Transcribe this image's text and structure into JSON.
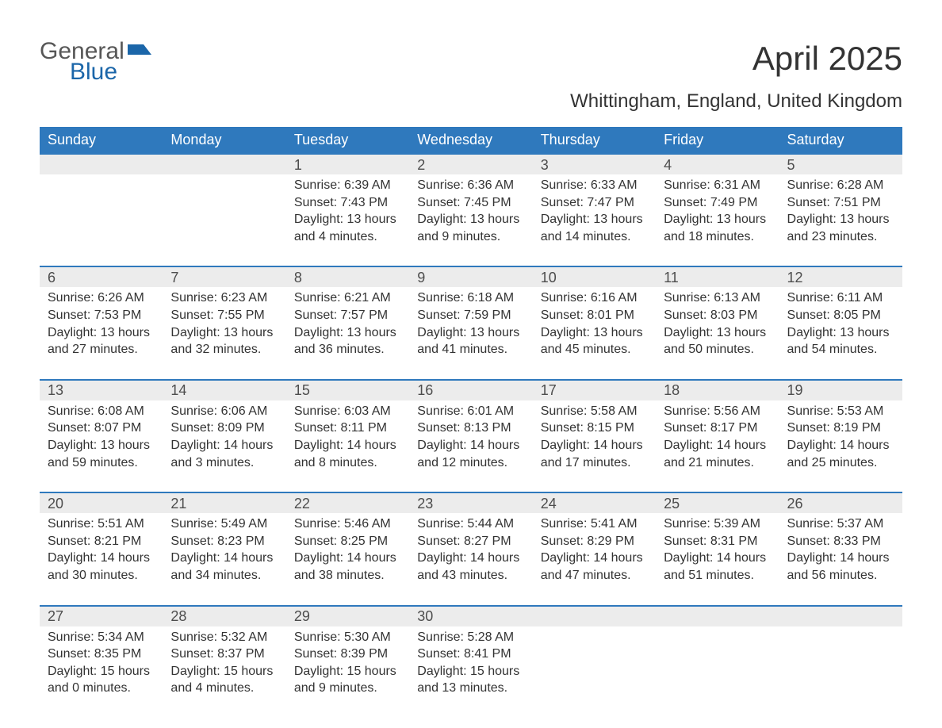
{
  "brand": {
    "word1": "General",
    "word2": "Blue",
    "icon_color": "#1b66a9"
  },
  "title": "April 2025",
  "location": "Whittingham, England, United Kingdom",
  "colors": {
    "header_bg": "#2f79bd",
    "header_text": "#ffffff",
    "daynum_bg": "#ececec",
    "row_border": "#2f79bd",
    "body_bg": "#ffffff",
    "text": "#333333"
  },
  "weekdays": [
    "Sunday",
    "Monday",
    "Tuesday",
    "Wednesday",
    "Thursday",
    "Friday",
    "Saturday"
  ],
  "weeks": [
    [
      null,
      null,
      {
        "n": "1",
        "sr": "6:39 AM",
        "ss": "7:43 PM",
        "dl": "13 hours and 4 minutes."
      },
      {
        "n": "2",
        "sr": "6:36 AM",
        "ss": "7:45 PM",
        "dl": "13 hours and 9 minutes."
      },
      {
        "n": "3",
        "sr": "6:33 AM",
        "ss": "7:47 PM",
        "dl": "13 hours and 14 minutes."
      },
      {
        "n": "4",
        "sr": "6:31 AM",
        "ss": "7:49 PM",
        "dl": "13 hours and 18 minutes."
      },
      {
        "n": "5",
        "sr": "6:28 AM",
        "ss": "7:51 PM",
        "dl": "13 hours and 23 minutes."
      }
    ],
    [
      {
        "n": "6",
        "sr": "6:26 AM",
        "ss": "7:53 PM",
        "dl": "13 hours and 27 minutes."
      },
      {
        "n": "7",
        "sr": "6:23 AM",
        "ss": "7:55 PM",
        "dl": "13 hours and 32 minutes."
      },
      {
        "n": "8",
        "sr": "6:21 AM",
        "ss": "7:57 PM",
        "dl": "13 hours and 36 minutes."
      },
      {
        "n": "9",
        "sr": "6:18 AM",
        "ss": "7:59 PM",
        "dl": "13 hours and 41 minutes."
      },
      {
        "n": "10",
        "sr": "6:16 AM",
        "ss": "8:01 PM",
        "dl": "13 hours and 45 minutes."
      },
      {
        "n": "11",
        "sr": "6:13 AM",
        "ss": "8:03 PM",
        "dl": "13 hours and 50 minutes."
      },
      {
        "n": "12",
        "sr": "6:11 AM",
        "ss": "8:05 PM",
        "dl": "13 hours and 54 minutes."
      }
    ],
    [
      {
        "n": "13",
        "sr": "6:08 AM",
        "ss": "8:07 PM",
        "dl": "13 hours and 59 minutes."
      },
      {
        "n": "14",
        "sr": "6:06 AM",
        "ss": "8:09 PM",
        "dl": "14 hours and 3 minutes."
      },
      {
        "n": "15",
        "sr": "6:03 AM",
        "ss": "8:11 PM",
        "dl": "14 hours and 8 minutes."
      },
      {
        "n": "16",
        "sr": "6:01 AM",
        "ss": "8:13 PM",
        "dl": "14 hours and 12 minutes."
      },
      {
        "n": "17",
        "sr": "5:58 AM",
        "ss": "8:15 PM",
        "dl": "14 hours and 17 minutes."
      },
      {
        "n": "18",
        "sr": "5:56 AM",
        "ss": "8:17 PM",
        "dl": "14 hours and 21 minutes."
      },
      {
        "n": "19",
        "sr": "5:53 AM",
        "ss": "8:19 PM",
        "dl": "14 hours and 25 minutes."
      }
    ],
    [
      {
        "n": "20",
        "sr": "5:51 AM",
        "ss": "8:21 PM",
        "dl": "14 hours and 30 minutes."
      },
      {
        "n": "21",
        "sr": "5:49 AM",
        "ss": "8:23 PM",
        "dl": "14 hours and 34 minutes."
      },
      {
        "n": "22",
        "sr": "5:46 AM",
        "ss": "8:25 PM",
        "dl": "14 hours and 38 minutes."
      },
      {
        "n": "23",
        "sr": "5:44 AM",
        "ss": "8:27 PM",
        "dl": "14 hours and 43 minutes."
      },
      {
        "n": "24",
        "sr": "5:41 AM",
        "ss": "8:29 PM",
        "dl": "14 hours and 47 minutes."
      },
      {
        "n": "25",
        "sr": "5:39 AM",
        "ss": "8:31 PM",
        "dl": "14 hours and 51 minutes."
      },
      {
        "n": "26",
        "sr": "5:37 AM",
        "ss": "8:33 PM",
        "dl": "14 hours and 56 minutes."
      }
    ],
    [
      {
        "n": "27",
        "sr": "5:34 AM",
        "ss": "8:35 PM",
        "dl": "15 hours and 0 minutes."
      },
      {
        "n": "28",
        "sr": "5:32 AM",
        "ss": "8:37 PM",
        "dl": "15 hours and 4 minutes."
      },
      {
        "n": "29",
        "sr": "5:30 AM",
        "ss": "8:39 PM",
        "dl": "15 hours and 9 minutes."
      },
      {
        "n": "30",
        "sr": "5:28 AM",
        "ss": "8:41 PM",
        "dl": "15 hours and 13 minutes."
      },
      null,
      null,
      null
    ]
  ],
  "labels": {
    "sunrise": "Sunrise: ",
    "sunset": "Sunset: ",
    "daylight": "Daylight: "
  }
}
